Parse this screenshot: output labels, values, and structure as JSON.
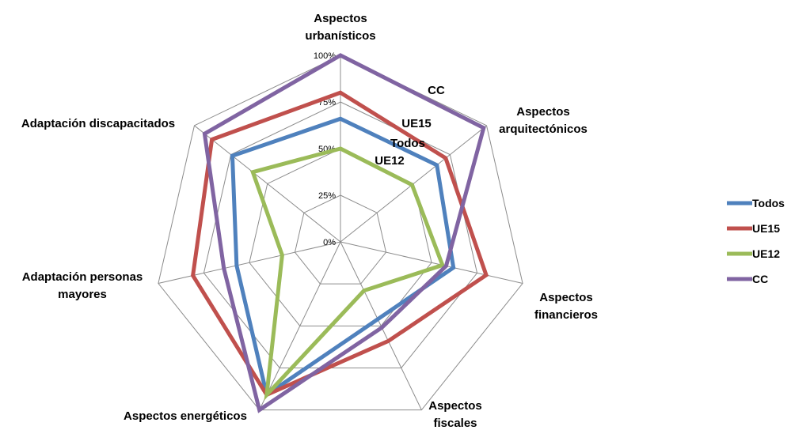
{
  "chart_data": {
    "type": "radar",
    "categories": [
      [
        "Aspectos",
        "urbanísticos"
      ],
      [
        "Aspectos",
        "arquitectónicos"
      ],
      [
        "Aspectos",
        "financieros"
      ],
      [
        "Aspectos",
        "fiscales"
      ],
      [
        "Aspectos energéticos"
      ],
      [
        "Adaptación personas",
        "mayores"
      ],
      [
        "Adaptación discapacitados"
      ]
    ],
    "rlim": [
      0,
      1
    ],
    "ticks": [
      "0%",
      "25%",
      "50%",
      "75%",
      "100%"
    ],
    "grid": true,
    "legend_position": "right",
    "series": [
      {
        "name": "Todos",
        "color": "#4f81bd",
        "values": [
          0.66,
          0.66,
          0.62,
          0.46,
          0.91,
          0.57,
          0.74
        ]
      },
      {
        "name": "UE15",
        "color": "#c0504d",
        "values": [
          0.8,
          0.72,
          0.8,
          0.59,
          0.91,
          0.81,
          0.88
        ]
      },
      {
        "name": "UE12",
        "color": "#9bbb59",
        "values": [
          0.5,
          0.49,
          0.56,
          0.29,
          0.91,
          0.32,
          0.6
        ]
      },
      {
        "name": "CC",
        "color": "#8064a2",
        "values": [
          1.0,
          0.98,
          0.58,
          0.51,
          1.0,
          0.64,
          0.93
        ]
      }
    ],
    "annotations": [
      "CC",
      "UE15",
      "Todos",
      "UE12"
    ]
  }
}
